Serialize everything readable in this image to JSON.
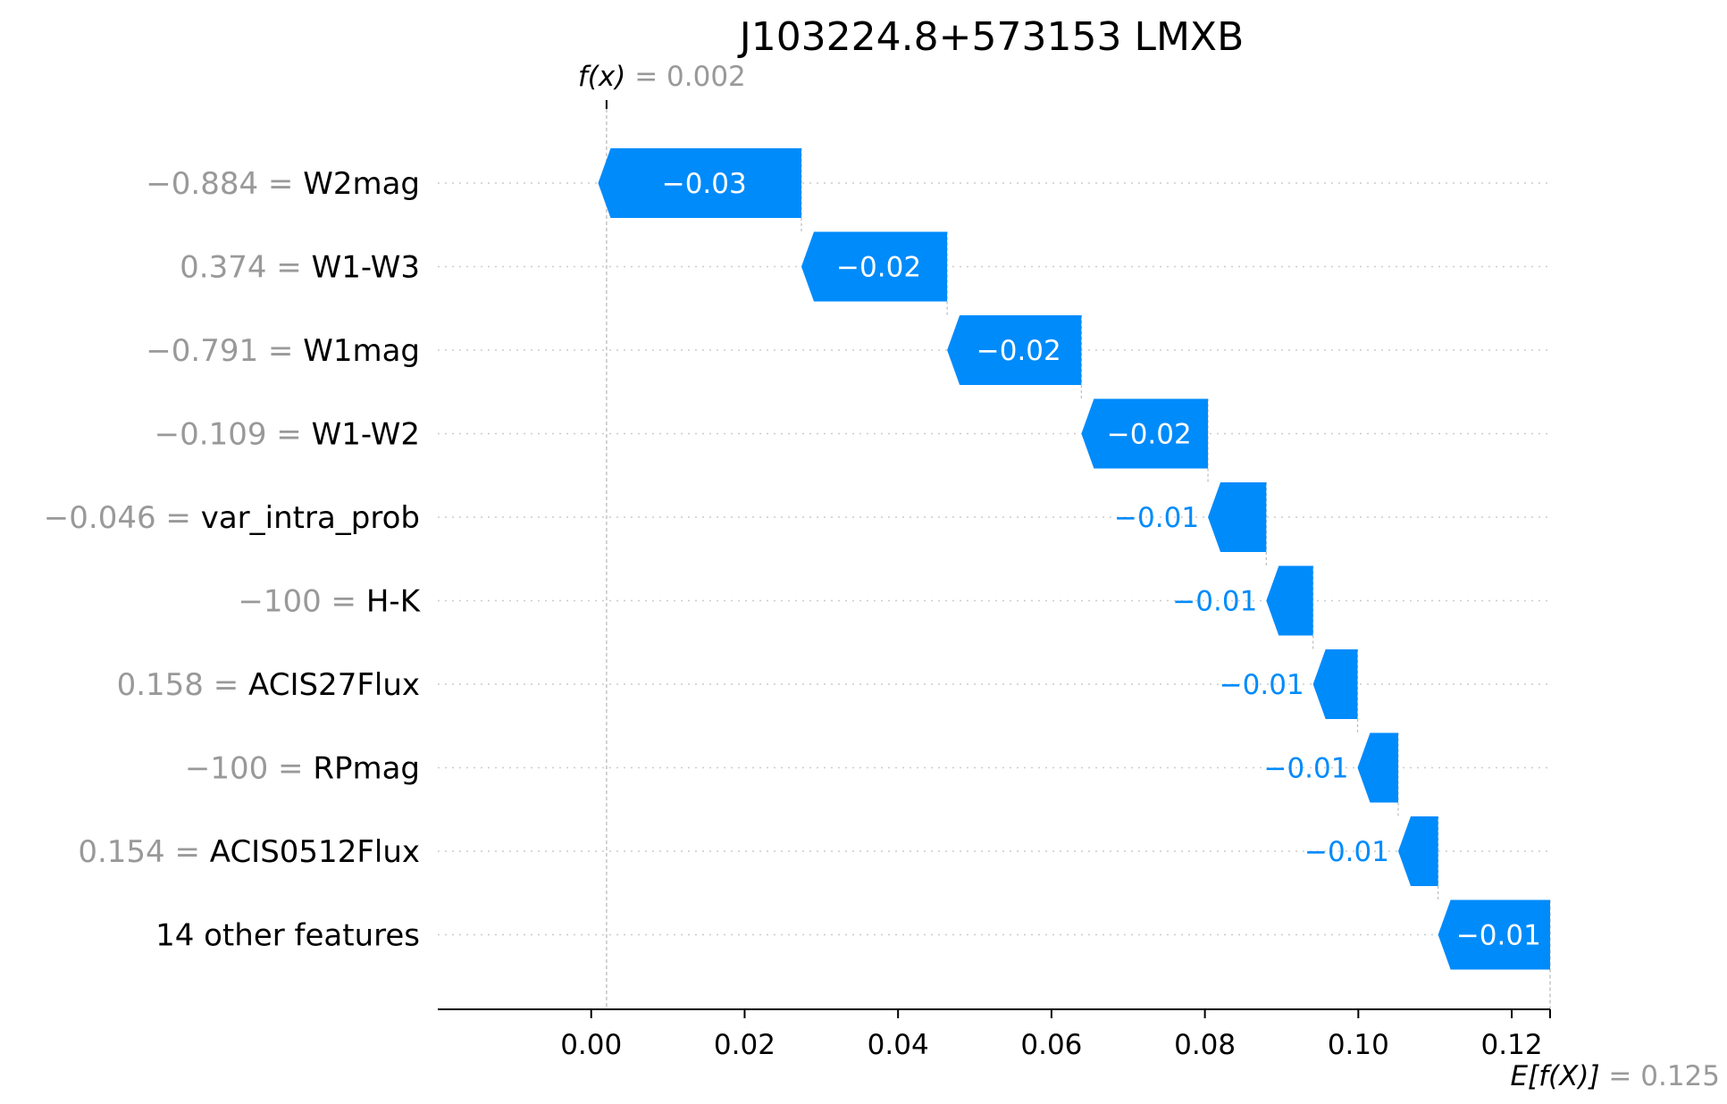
{
  "chart_data": {
    "type": "waterfall",
    "title": "J103224.8+573153 LMXB",
    "base_value": 0.125,
    "base_label": "E[f(X)]",
    "base_value_text": "= 0.125",
    "output_value": 0.002,
    "output_label": "f(x)",
    "output_value_text": "= 0.002",
    "xlim": [
      -0.02,
      0.125
    ],
    "x_ticks": [
      0.0,
      0.02,
      0.04,
      0.06,
      0.08,
      0.1,
      0.12
    ],
    "x_tick_labels": [
      "0.00",
      "0.02",
      "0.04",
      "0.06",
      "0.08",
      "0.10",
      "0.12"
    ],
    "features": [
      {
        "value": "−0.884",
        "name": "W2mag",
        "shap": -0.0265,
        "label": "−0.03"
      },
      {
        "value": "0.374",
        "name": "W1-W3",
        "shap": -0.019,
        "label": "−0.02"
      },
      {
        "value": "−0.791",
        "name": "W1mag",
        "shap": -0.0175,
        "label": "−0.02"
      },
      {
        "value": "−0.109",
        "name": "W1-W2",
        "shap": -0.0165,
        "label": "−0.02"
      },
      {
        "value": "−0.046",
        "name": "var_intra_prob",
        "shap": -0.0076,
        "label": "−0.01"
      },
      {
        "value": "−100",
        "name": "H-K",
        "shap": -0.0061,
        "label": "−0.01"
      },
      {
        "value": "0.158",
        "name": "ACIS27Flux",
        "shap": -0.0058,
        "label": "−0.01"
      },
      {
        "value": "−100",
        "name": "RPmag",
        "shap": -0.0053,
        "label": "−0.01"
      },
      {
        "value": "0.154",
        "name": "ACIS0512Flux",
        "shap": -0.0052,
        "label": "−0.01"
      },
      {
        "value": "",
        "name": "14 other features",
        "shap": -0.0146,
        "label": "−0.01"
      }
    ],
    "colors": {
      "negative": "#008bfb",
      "grid": "#cccccc",
      "muted_text": "#999999"
    }
  }
}
